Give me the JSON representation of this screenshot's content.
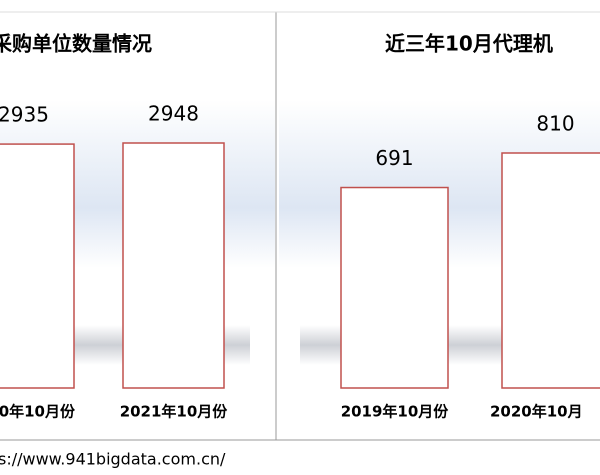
{
  "chart_data": [
    {
      "type": "bar",
      "title": "采购单位数量情况",
      "categories": [
        "0年10月份",
        "2021年10月份"
      ],
      "values": [
        2935,
        2948
      ],
      "color": "#c0504d"
    },
    {
      "type": "bar",
      "title": "近三年10月代理机",
      "categories": [
        "2019年10月份",
        "2020年10月"
      ],
      "values": [
        691,
        810
      ],
      "color": "#c0504d"
    }
  ],
  "footer": {
    "source": "s://www.941bigdata.com.cn/"
  }
}
